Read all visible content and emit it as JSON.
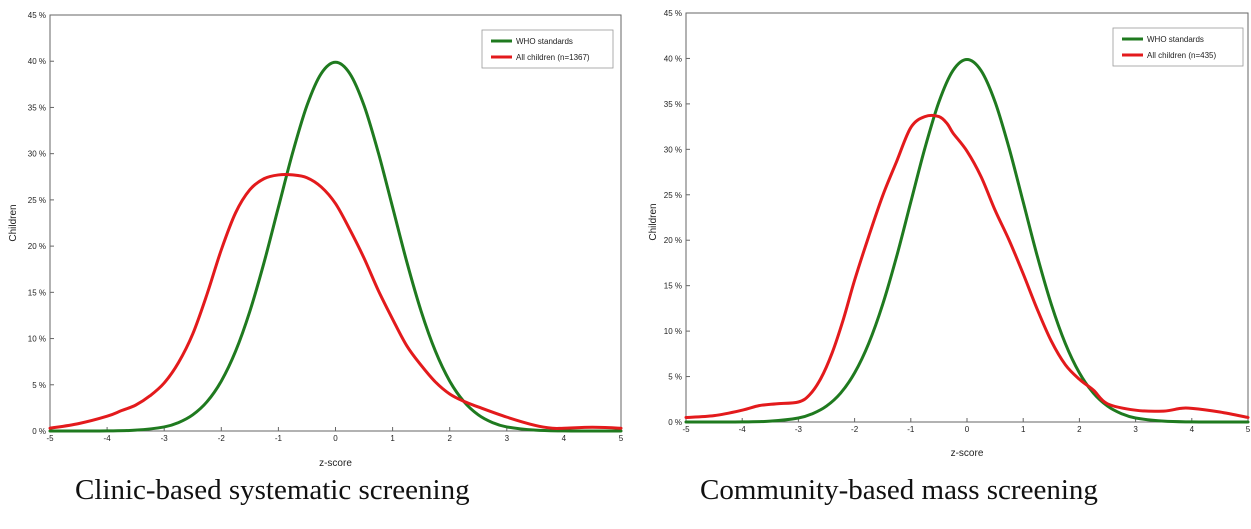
{
  "chart_data": [
    {
      "type": "line",
      "caption": "Clinic-based systematic screening",
      "xlabel": "z-score",
      "ylabel": "Children",
      "xlim": [
        -5,
        5
      ],
      "ylim": [
        0,
        45
      ],
      "xticks": [
        "-5",
        "-4",
        "-3",
        "-2",
        "-1",
        "0",
        "1",
        "2",
        "3",
        "4",
        "5"
      ],
      "yticks": [
        "0 %",
        "5 %",
        "10 %",
        "15 %",
        "20 %",
        "25 %",
        "30 %",
        "35 %",
        "40 %",
        "45 %"
      ],
      "legend_position": "top-right",
      "series": [
        {
          "name": "WHO standards",
          "color": "#1f7a1f",
          "x": [
            -5,
            -4.5,
            -4,
            -3.5,
            -3,
            -2.75,
            -2.5,
            -2.25,
            -2,
            -1.75,
            -1.5,
            -1.25,
            -1,
            -0.75,
            -0.5,
            -0.25,
            0,
            0.25,
            0.5,
            0.75,
            1,
            1.25,
            1.5,
            1.75,
            2,
            2.25,
            2.5,
            2.75,
            3,
            3.5,
            4,
            4.5,
            5
          ],
          "y": [
            0,
            0,
            0.01,
            0.09,
            0.44,
            0.91,
            1.75,
            3.17,
            5.4,
            8.63,
            12.95,
            18.26,
            24.2,
            30.11,
            35.21,
            38.67,
            39.89,
            38.67,
            35.21,
            30.11,
            24.2,
            18.26,
            12.95,
            8.63,
            5.4,
            3.17,
            1.75,
            0.91,
            0.44,
            0.09,
            0.01,
            0,
            0
          ]
        },
        {
          "name": "All children (n=1367)",
          "color": "#e31a1c",
          "x": [
            -5,
            -4.5,
            -4,
            -3.75,
            -3.5,
            -3.25,
            -3,
            -2.75,
            -2.5,
            -2.25,
            -2,
            -1.75,
            -1.5,
            -1.25,
            -1,
            -0.75,
            -0.5,
            -0.25,
            0,
            0.25,
            0.5,
            0.75,
            1,
            1.25,
            1.5,
            1.75,
            2,
            2.25,
            2.5,
            3,
            3.5,
            3.8,
            4,
            4.5,
            5
          ],
          "y": [
            0.3,
            0.8,
            1.6,
            2.2,
            2.8,
            3.8,
            5.2,
            7.4,
            10.5,
            14.8,
            19.6,
            23.6,
            26.1,
            27.3,
            27.7,
            27.7,
            27.4,
            26.4,
            24.6,
            21.8,
            18.7,
            15.2,
            12.1,
            9.2,
            7.1,
            5.3,
            4.0,
            3.2,
            2.6,
            1.5,
            0.6,
            0.3,
            0.3,
            0.4,
            0.3
          ]
        }
      ]
    },
    {
      "type": "line",
      "caption": "Community-based mass screening",
      "xlabel": "z-score",
      "ylabel": "Children",
      "xlim": [
        -5,
        5
      ],
      "ylim": [
        0,
        45
      ],
      "xticks": [
        "-5",
        "-4",
        "-3",
        "-2",
        "-1",
        "0",
        "1",
        "2",
        "3",
        "4",
        "5"
      ],
      "yticks": [
        "0 %",
        "5 %",
        "10 %",
        "15 %",
        "20 %",
        "25 %",
        "30 %",
        "35 %",
        "40 %",
        "45 %"
      ],
      "legend_position": "top-right",
      "series": [
        {
          "name": "WHO standards",
          "color": "#1f7a1f",
          "x": [
            -5,
            -4.5,
            -4,
            -3.5,
            -3,
            -2.75,
            -2.5,
            -2.25,
            -2,
            -1.75,
            -1.5,
            -1.25,
            -1,
            -0.75,
            -0.5,
            -0.25,
            0,
            0.25,
            0.5,
            0.75,
            1,
            1.25,
            1.5,
            1.75,
            2,
            2.25,
            2.5,
            2.75,
            3,
            3.5,
            4,
            4.5,
            5
          ],
          "y": [
            0,
            0,
            0.01,
            0.09,
            0.44,
            0.91,
            1.75,
            3.17,
            5.4,
            8.63,
            12.95,
            18.26,
            24.2,
            30.11,
            35.21,
            38.67,
            39.89,
            38.67,
            35.21,
            30.11,
            24.2,
            18.26,
            12.95,
            8.63,
            5.4,
            3.17,
            1.75,
            0.91,
            0.44,
            0.09,
            0.01,
            0,
            0
          ]
        },
        {
          "name": "All children (n=435)",
          "color": "#e31a1c",
          "x": [
            -5,
            -4.5,
            -4,
            -3.7,
            -3.4,
            -3,
            -2.8,
            -2.6,
            -2.4,
            -2.2,
            -2,
            -1.75,
            -1.5,
            -1.25,
            -1,
            -0.75,
            -0.5,
            -0.35,
            -0.25,
            0,
            0.25,
            0.5,
            0.75,
            1,
            1.25,
            1.5,
            1.75,
            2,
            2.25,
            2.5,
            3,
            3.5,
            3.8,
            4,
            4.5,
            5
          ],
          "y": [
            0.5,
            0.7,
            1.3,
            1.8,
            2.0,
            2.2,
            3.0,
            4.8,
            7.6,
            11.3,
            15.6,
            20.4,
            24.9,
            28.7,
            32.4,
            33.6,
            33.6,
            32.8,
            31.8,
            29.8,
            27.0,
            23.3,
            20.0,
            16.3,
            12.4,
            8.9,
            6.3,
            4.7,
            3.5,
            2.0,
            1.3,
            1.2,
            1.5,
            1.5,
            1.1,
            0.5
          ]
        }
      ]
    }
  ]
}
